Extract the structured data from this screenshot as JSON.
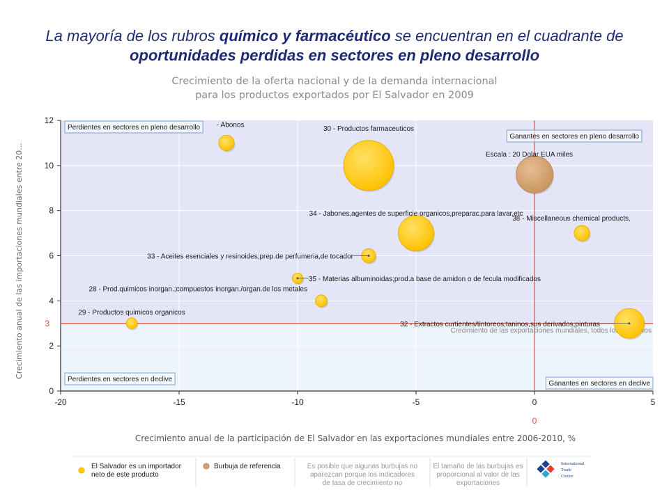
{
  "slide": {
    "title_parts": [
      {
        "text": "La mayoría de los rubros ",
        "bold": false
      },
      {
        "text": "químico y farmacéutico",
        "bold": true
      },
      {
        "text": " se encuentran en el cuadrante de ",
        "bold": false
      },
      {
        "text": "oportunidades perdidas en sectores en pleno desarrollo",
        "bold": true
      }
    ]
  },
  "chart_data": {
    "type": "scatter",
    "title": "Crecimiento de la oferta nacional y de la demanda internacional\npara los productos exportados por El Salvador en 2009",
    "xlabel": "Crecimiento anual de la participación de El Salvador en las exportaciones mundiales entre 2006-2010, %",
    "ylabel": "Crecimiento anual de las importaciones mundiales entre 20...",
    "xlim": [
      -20,
      5
    ],
    "ylim": [
      0,
      12
    ],
    "xticks": [
      -20,
      -15,
      -10,
      -5,
      0,
      5
    ],
    "yticks": [
      0,
      2,
      4,
      6,
      8,
      10,
      12
    ],
    "grid": true,
    "reference_lines": {
      "x": 0,
      "y": 3,
      "x_label": "0",
      "y_label": "3",
      "y_line_label": "Crecimiento de las exportaciones mundiales, todos los productos"
    },
    "quadrant_labels": {
      "top_left": "Perdientes en sectores en pleno desarrollo",
      "top_right": "Ganantes en sectores en pleno desarrollo",
      "bottom_left": "Perdientes en sectores en declive",
      "bottom_right": "Ganantes en sectores en declive"
    },
    "scale_label": "Escala : 20 Dolar EUA miles",
    "series": [
      {
        "name": "El Salvador es un importador neto de este producto",
        "color": "#ffcc00",
        "points": [
          {
            "label": "- Abonos",
            "x": -13,
            "y": 11,
            "size": 2
          },
          {
            "label": "30 - Productos farmaceuticos",
            "x": -7,
            "y": 10,
            "size": 40
          },
          {
            "label": "34 - Jabones,agentes de superficie organicos,preparac.para lavar,etc",
            "x": -5,
            "y": 7,
            "size": 18
          },
          {
            "label": "38 - Miscellaneous chemical products.",
            "x": 2,
            "y": 7,
            "size": 2
          },
          {
            "label": "33 - Aceites esenciales y resinoides;prep.de perfumeria,de tocador",
            "x": -7,
            "y": 6,
            "size": 1.5
          },
          {
            "label": "35 - Materias albuminoidas;prod.a base de amidon o de fecula modificados",
            "x": -10,
            "y": 5,
            "size": 0.5
          },
          {
            "label": "28 - Prod.quimicos inorgan.;compuestos inorgan./organ.de los metales",
            "x": -9,
            "y": 4,
            "size": 0.8
          },
          {
            "label": "29 - Productos quimicos organicos",
            "x": -17,
            "y": 3,
            "size": 0.6
          },
          {
            "label": "32 - Extractos curtientes/tintoreos;taninos,sus derivados;pinturas",
            "x": 4,
            "y": 3,
            "size": 12
          }
        ]
      },
      {
        "name": "Burbuja de referencia",
        "color": "#d4a373",
        "points": [
          {
            "label": "Escala : 20 Dolar EUA miles",
            "x": 0,
            "y": 9.6,
            "size": 20
          }
        ]
      }
    ],
    "legend": {
      "position": "bottom",
      "items": [
        {
          "text": "El Salvador es un importador neto de este producto",
          "color": "#ffcc00"
        },
        {
          "text": "Burbuja de referencia",
          "color": "#d4a373"
        }
      ],
      "notes": [
        "Es posible que algunas burbujas no aparezcan porque los indicadores de tasa de crecimiento no",
        "El tamaño de las burbujas es proporcional al valor de las exportaciones"
      ],
      "logo_text": [
        "International",
        "Trade",
        "Centre"
      ]
    }
  }
}
